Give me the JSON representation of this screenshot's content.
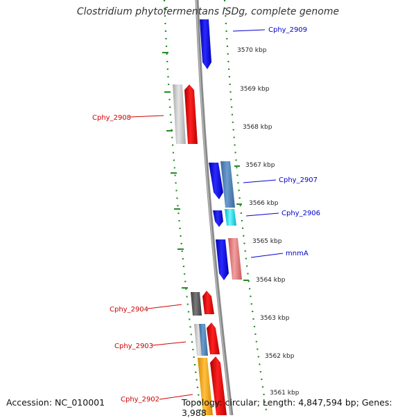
{
  "title": "Clostridium phytofermentans ISDg, complete genome",
  "footer": {
    "accession": "Accession: NC_010001",
    "summary": "Topology: circular; Length: 4,847,594 bp; Genes: 3,988"
  },
  "colors": {
    "forward": "#0000ee",
    "reverse": "#ee0000",
    "backbone": "#888888",
    "gc_dots": "#228B22",
    "label_right": "#0000cc",
    "label_left": "#cc0000"
  },
  "ticks": [
    "3570 kbp",
    "3569 kbp",
    "3568 kbp",
    "3567 kbp",
    "3566 kbp",
    "3565 kbp",
    "3564 kbp",
    "3563 kbp",
    "3562 kbp",
    "3561 kbp"
  ],
  "gene_labels": [
    {
      "text": "Cphy_2909",
      "side": "right"
    },
    {
      "text": "Cphy_2908",
      "side": "left"
    },
    {
      "text": "Cphy_2907",
      "side": "right"
    },
    {
      "text": "Cphy_2906",
      "side": "right"
    },
    {
      "text": "mnmA",
      "side": "right"
    },
    {
      "text": "Cphy_2904",
      "side": "left"
    },
    {
      "text": "Cphy_2903",
      "side": "left"
    },
    {
      "text": "Cphy_2902",
      "side": "left"
    }
  ]
}
